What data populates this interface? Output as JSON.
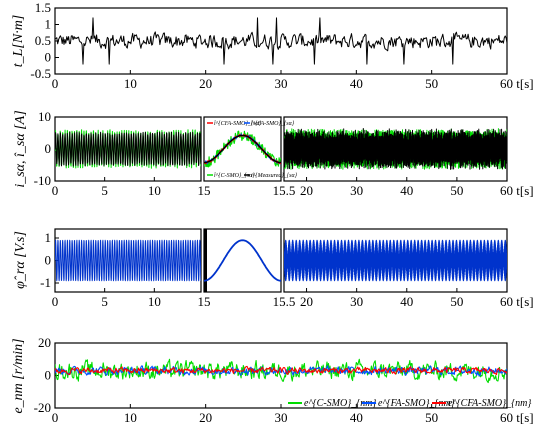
{
  "chart_data": [
    {
      "type": "line",
      "panel": "load-torque",
      "ylabel": "t_L[N·m]",
      "xlabel": "t[s]",
      "xlim": [
        0,
        60
      ],
      "ylim": [
        -0.5,
        1.5
      ],
      "xticks": [
        0,
        10,
        20,
        30,
        40,
        50,
        60
      ],
      "yticks": [
        -0.5,
        0,
        0.5,
        1,
        1.5
      ],
      "ytick_labels": [
        "-0.5",
        "0",
        "0.5",
        "1",
        "1.5"
      ],
      "series": [
        {
          "color": "#000000",
          "description": "random load torque, mean ≈0.5, range ≈0.0–1.2",
          "mean": 0.5,
          "amplitude": 0.32
        }
      ]
    },
    {
      "type": "line",
      "panel": "stator-current",
      "ylabel": "i_sα, î_sα [A]",
      "xlabel": "t[s]",
      "subpanels": [
        {
          "xlim": [
            0,
            14.7
          ],
          "xticks": [
            0,
            5,
            10
          ],
          "ylim": [
            -10,
            10
          ],
          "yticks": [
            -10,
            0,
            10
          ]
        },
        {
          "xlim": [
            15,
            15.5
          ],
          "xticks": [
            15,
            15.5
          ],
          "ylim": [
            -10,
            10
          ],
          "zoom": true
        },
        {
          "xlim": [
            15.5,
            60
          ],
          "xticks": [
            20,
            30,
            40,
            50,
            60
          ],
          "ylim": [
            -10,
            10
          ]
        }
      ],
      "amplitude": 5,
      "series": [
        {
          "color": "#00dd00"
        },
        {
          "color": "#0050ff"
        },
        {
          "color": "#ff0000"
        },
        {
          "color": "#000000"
        }
      ],
      "legend": [
        {
          "label": "î^{CFA-SMO}_{sα}",
          "color": "#ff0000"
        },
        {
          "label": "î^{FA-SMO}_{sα}",
          "color": "#0050ff"
        },
        {
          "label": "î^{C-SMO}_{sα}",
          "color": "#00dd00"
        },
        {
          "label": "i^{Measured}_{sα}",
          "color": "#000000"
        }
      ]
    },
    {
      "type": "line",
      "panel": "rotor-flux",
      "ylabel": "φ̂_rα [V.s]",
      "xlabel": "t[s]",
      "subpanels": [
        {
          "xlim": [
            0,
            14.7
          ],
          "xticks": [
            0,
            5,
            10
          ],
          "ylim": [
            -1.4,
            1.4
          ],
          "yticks": [
            -1,
            0,
            1
          ]
        },
        {
          "xlim": [
            15,
            15.5
          ],
          "xticks": [
            15,
            15.5
          ],
          "ylim": [
            -1.4,
            1.4
          ],
          "zoom": true
        },
        {
          "xlim": [
            15.5,
            60
          ],
          "xticks": [
            20,
            30,
            40,
            50,
            60
          ],
          "ylim": [
            -1.4,
            1.4
          ]
        }
      ],
      "amplitude": 0.9,
      "series": [
        {
          "color": "#0033cc"
        }
      ]
    },
    {
      "type": "line",
      "panel": "speed-error",
      "ylabel": "e_nm [r/min]",
      "xlabel": "t[s]",
      "xlim": [
        0,
        60
      ],
      "ylim": [
        -20,
        20
      ],
      "xticks": [
        0,
        10,
        20,
        30,
        40,
        50,
        60
      ],
      "yticks": [
        -20,
        0,
        20
      ],
      "series": [
        {
          "label": "e^{C-SMO}_{nm}",
          "color": "#00dd00",
          "amplitude": 9,
          "mean": 3
        },
        {
          "label": "e^{FA-SMO}_{nm}",
          "color": "#0050ff",
          "amplitude": 4,
          "mean": 3
        },
        {
          "label": "e^{CFA-SMO}_{nm}",
          "color": "#ff0000",
          "amplitude": 3,
          "mean": 3
        }
      ]
    }
  ]
}
